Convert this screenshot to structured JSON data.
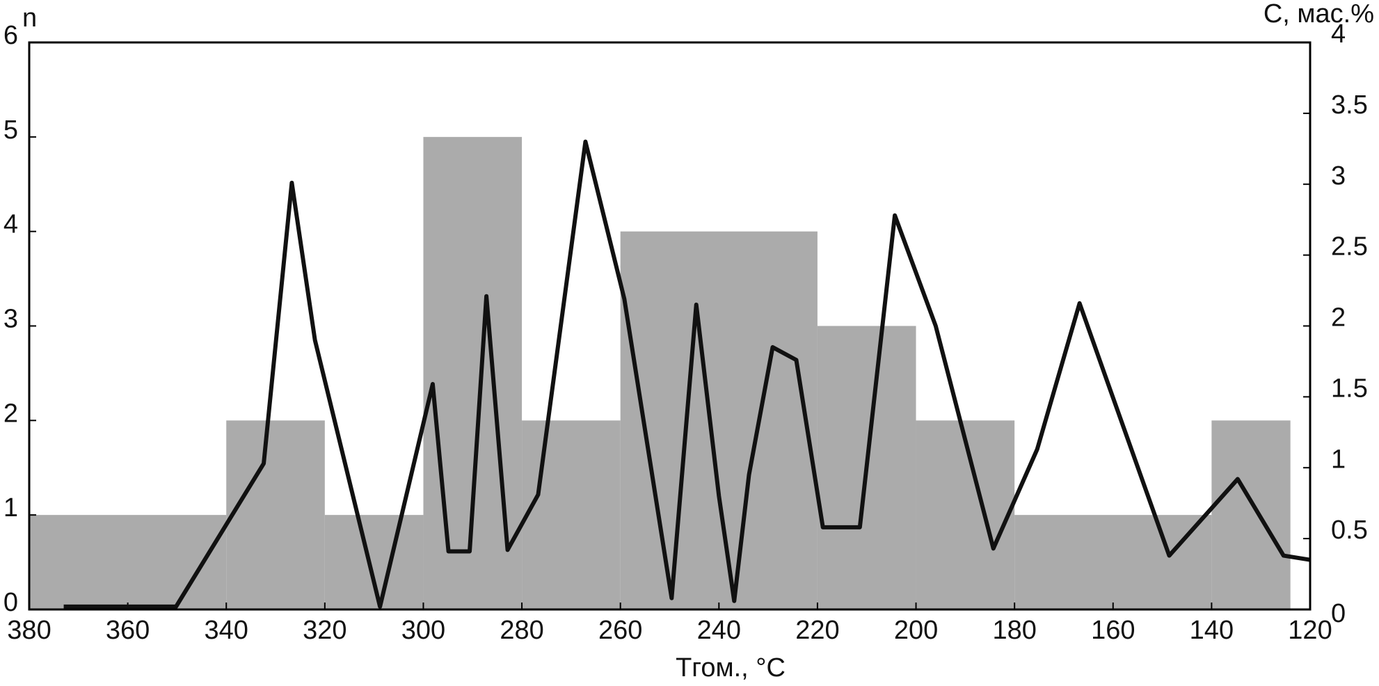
{
  "chart_data": [
    {
      "type": "histogram",
      "xlabel": "Tгом., °C",
      "ylabel": "n",
      "bins": [
        380,
        340,
        320,
        300,
        280,
        260,
        220,
        200,
        180,
        140,
        124
      ],
      "values": [
        1,
        2,
        1,
        5,
        2,
        4,
        3,
        2,
        1,
        2
      ],
      "color": "#ababab",
      "xlim": [
        380,
        120
      ],
      "xticks": [
        380,
        360,
        340,
        320,
        300,
        280,
        260,
        240,
        220,
        200,
        180,
        160,
        140,
        120
      ],
      "ylim": [
        0,
        6
      ],
      "yticks": [
        0,
        1,
        2,
        3,
        4,
        5,
        6
      ]
    },
    {
      "type": "line",
      "y2label": "C, мас.%",
      "x": [
        373,
        350.2,
        332.4,
        326.7,
        322,
        308.8,
        298.1,
        294.9,
        290.6,
        287.2,
        282.9,
        276.7,
        267.1,
        259.2,
        249.6,
        244.6,
        240,
        236.9,
        233.9,
        229.1,
        224.3,
        218.9,
        211.4,
        204.3,
        196,
        184.3,
        175.4,
        166.8,
        161.4,
        148.6,
        134.7,
        125.4,
        120
      ],
      "values": [
        0.02,
        0.02,
        1.03,
        3.01,
        1.9,
        0.02,
        1.59,
        0.41,
        0.41,
        2.21,
        0.42,
        0.81,
        3.3,
        2.19,
        0.08,
        2.15,
        0.8,
        0.06,
        0.95,
        1.85,
        1.76,
        0.58,
        0.58,
        2.78,
        2.0,
        0.43,
        1.13,
        2.16,
        1.63,
        0.38,
        0.92,
        0.38,
        0.35
      ],
      "color": "#111111",
      "xlim": [
        380,
        120
      ],
      "y2lim": [
        0,
        4
      ],
      "y2ticks": [
        0,
        0.5,
        1,
        1.5,
        2,
        2.5,
        3,
        3.5,
        4
      ]
    }
  ]
}
